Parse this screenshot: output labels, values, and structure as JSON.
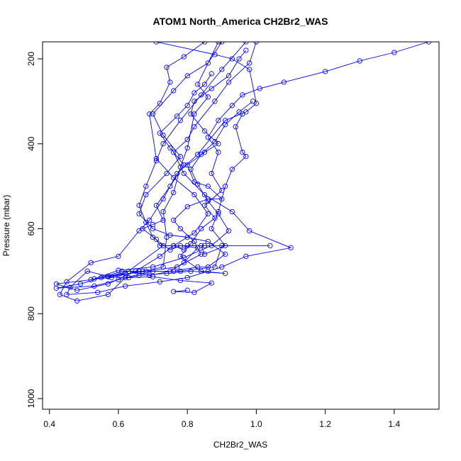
{
  "chart_data": {
    "type": "scatter",
    "title": "ATOM1 North_America CH2Br2_WAS",
    "xlabel": "CH2Br2_WAS",
    "ylabel": "Pressure (mbar)",
    "xlim": [
      0.38,
      1.53
    ],
    "ylim": [
      1025,
      160
    ],
    "y_inverted": true,
    "grid": false,
    "xticks": [
      "0.4",
      "0.6",
      "0.8",
      "1.0",
      "1.2",
      "1.4"
    ],
    "yticks": [
      "200",
      "400",
      "600",
      "800",
      "1000"
    ],
    "series_color": "#0000ff",
    "series": [
      {
        "values": [
          [
            0.71,
            160
          ],
          [
            0.88,
            190
          ],
          [
            0.93,
            200
          ],
          [
            0.98,
            225
          ],
          [
            1.0,
            305
          ],
          [
            0.97,
            325
          ],
          [
            0.91,
            345
          ],
          [
            0.83,
            425
          ],
          [
            0.77,
            470
          ],
          [
            0.73,
            530
          ],
          [
            0.69,
            580
          ],
          [
            0.66,
            605
          ],
          [
            0.6,
            665
          ],
          [
            0.52,
            680
          ],
          [
            0.45,
            725
          ],
          [
            0.43,
            755
          ],
          [
            0.48,
            770
          ],
          [
            0.57,
            755
          ],
          [
            0.62,
            715
          ],
          [
            0.7,
            700
          ],
          [
            0.78,
            700
          ],
          [
            0.88,
            690
          ],
          [
            0.9,
            640
          ],
          [
            1.04,
            640
          ],
          [
            0.85,
            640
          ],
          [
            0.73,
            640
          ],
          [
            0.62,
            705
          ],
          [
            0.52,
            720
          ],
          [
            0.42,
            730
          ],
          [
            0.48,
            745
          ],
          [
            0.57,
            730
          ],
          [
            0.65,
            700
          ],
          [
            0.72,
            665
          ],
          [
            0.76,
            640
          ],
          [
            0.82,
            610
          ],
          [
            0.86,
            565
          ],
          [
            0.82,
            520
          ],
          [
            0.76,
            480
          ],
          [
            0.71,
            435
          ],
          [
            0.69,
            330
          ],
          [
            0.72,
            305
          ],
          [
            0.75,
            255
          ],
          [
            0.74,
            220
          ],
          [
            0.79,
            195
          ],
          [
            0.85,
            160
          ]
        ]
      },
      {
        "values": [
          [
            0.89,
            160
          ],
          [
            0.83,
            260
          ],
          [
            0.86,
            290
          ],
          [
            0.82,
            330
          ],
          [
            0.8,
            410
          ],
          [
            0.78,
            455
          ],
          [
            0.76,
            515
          ],
          [
            0.73,
            560
          ],
          [
            0.74,
            620
          ],
          [
            0.73,
            690
          ],
          [
            0.67,
            700
          ],
          [
            0.61,
            700
          ],
          [
            0.55,
            715
          ],
          [
            0.49,
            730
          ],
          [
            0.42,
            740
          ],
          [
            0.53,
            735
          ],
          [
            0.6,
            720
          ],
          [
            0.66,
            710
          ],
          [
            0.74,
            705
          ],
          [
            0.81,
            700
          ],
          [
            0.91,
            705
          ],
          [
            0.84,
            700
          ],
          [
            0.78,
            665
          ],
          [
            0.81,
            635
          ],
          [
            0.84,
            600
          ],
          [
            0.88,
            575
          ],
          [
            0.85,
            545
          ],
          [
            0.9,
            510
          ],
          [
            0.87,
            470
          ],
          [
            0.89,
            420
          ],
          [
            0.86,
            385
          ],
          [
            0.89,
            345
          ],
          [
            0.93,
            310
          ],
          [
            0.96,
            285
          ],
          [
            1.01,
            270
          ],
          [
            1.08,
            255
          ],
          [
            1.2,
            230
          ],
          [
            1.3,
            205
          ],
          [
            1.4,
            185
          ],
          [
            1.5,
            160
          ]
        ]
      },
      {
        "values": [
          [
            0.97,
            160
          ],
          [
            0.9,
            225
          ],
          [
            0.84,
            285
          ],
          [
            0.78,
            345
          ],
          [
            0.73,
            400
          ],
          [
            0.71,
            440
          ],
          [
            0.68,
            500
          ],
          [
            0.66,
            545
          ],
          [
            0.68,
            585
          ],
          [
            0.7,
            620
          ],
          [
            0.75,
            650
          ],
          [
            0.78,
            640
          ],
          [
            0.83,
            645
          ],
          [
            0.79,
            680
          ],
          [
            0.75,
            700
          ],
          [
            0.69,
            710
          ],
          [
            0.63,
            700
          ],
          [
            0.57,
            712
          ],
          [
            0.51,
            700
          ],
          [
            0.46,
            738
          ],
          [
            0.45,
            755
          ],
          [
            0.54,
            750
          ],
          [
            0.62,
            735
          ],
          [
            0.72,
            725
          ],
          [
            0.8,
            715
          ],
          [
            0.86,
            700
          ],
          [
            0.9,
            690
          ],
          [
            0.97,
            665
          ],
          [
            1.1,
            645
          ],
          [
            0.98,
            605
          ],
          [
            0.93,
            560
          ],
          [
            0.85,
            520
          ],
          [
            0.79,
            470
          ],
          [
            0.76,
            420
          ],
          [
            0.8,
            390
          ],
          [
            0.82,
            360
          ],
          [
            0.88,
            300
          ],
          [
            0.92,
            255
          ],
          [
            0.98,
            210
          ],
          [
            1.0,
            160
          ]
        ]
      },
      {
        "values": [
          [
            0.9,
            160
          ],
          [
            0.86,
            210
          ],
          [
            0.8,
            240
          ],
          [
            0.76,
            275
          ],
          [
            0.7,
            330
          ],
          [
            0.73,
            380
          ],
          [
            0.78,
            430
          ],
          [
            0.74,
            470
          ],
          [
            0.68,
            520
          ],
          [
            0.66,
            565
          ],
          [
            0.7,
            600
          ],
          [
            0.75,
            615
          ],
          [
            0.8,
            620
          ],
          [
            0.86,
            630
          ],
          [
            0.91,
            660
          ],
          [
            0.86,
            690
          ],
          [
            0.83,
            690
          ],
          [
            0.76,
            700
          ],
          [
            0.66,
            700
          ],
          [
            0.58,
            715
          ],
          [
            0.53,
            718
          ],
          [
            0.6,
            698
          ],
          [
            0.7,
            690
          ],
          [
            0.79,
            668
          ],
          [
            0.87,
            640
          ],
          [
            0.92,
            605
          ],
          [
            0.89,
            565
          ],
          [
            0.86,
            535
          ],
          [
            0.83,
            495
          ],
          [
            0.81,
            460
          ],
          [
            0.84,
            425
          ],
          [
            0.88,
            395
          ],
          [
            0.91,
            355
          ],
          [
            0.95,
            325
          ],
          [
            0.99,
            300
          ]
        ]
      },
      {
        "values": [
          [
            0.8,
            745
          ],
          [
            0.76,
            748
          ],
          [
            0.82,
            750
          ],
          [
            0.87,
            728
          ],
          [
            0.78,
            722
          ],
          [
            0.7,
            713
          ],
          [
            0.63,
            715
          ],
          [
            0.57,
            713
          ],
          [
            0.68,
            700
          ],
          [
            0.77,
            690
          ],
          [
            0.84,
            660
          ],
          [
            0.82,
            630
          ],
          [
            0.78,
            600
          ],
          [
            0.76,
            580
          ],
          [
            0.8,
            548
          ],
          [
            0.86,
            530
          ],
          [
            0.9,
            530
          ],
          [
            0.86,
            500
          ],
          [
            0.82,
            490
          ],
          [
            0.8,
            450
          ],
          [
            0.85,
            420
          ],
          [
            0.89,
            400
          ],
          [
            0.85,
            370
          ],
          [
            0.81,
            330
          ],
          [
            0.82,
            300
          ],
          [
            0.87,
            270
          ],
          [
            0.92,
            240
          ],
          [
            0.95,
            200
          ],
          [
            0.97,
            180
          ]
        ]
      },
      {
        "values": [
          [
            0.96,
            330
          ],
          [
            0.94,
            360
          ],
          [
            0.96,
            420
          ],
          [
            0.97,
            430
          ],
          [
            0.93,
            460
          ],
          [
            0.91,
            500
          ],
          [
            0.89,
            560
          ],
          [
            0.87,
            600
          ],
          [
            0.91,
            640
          ],
          [
            0.85,
            660
          ],
          [
            0.84,
            640
          ],
          [
            0.8,
            640
          ],
          [
            0.79,
            650
          ],
          [
            0.76,
            640
          ],
          [
            0.72,
            640
          ],
          [
            0.71,
            625
          ],
          [
            0.67,
            600
          ],
          [
            0.7,
            590
          ],
          [
            0.73,
            580
          ],
          [
            0.71,
            545
          ],
          [
            0.75,
            500
          ],
          [
            0.79,
            450
          ],
          [
            0.75,
            410
          ],
          [
            0.72,
            375
          ],
          [
            0.77,
            335
          ],
          [
            0.8,
            310
          ],
          [
            0.82,
            280
          ],
          [
            0.85,
            260
          ],
          [
            0.87,
            235
          ]
        ]
      }
    ]
  }
}
